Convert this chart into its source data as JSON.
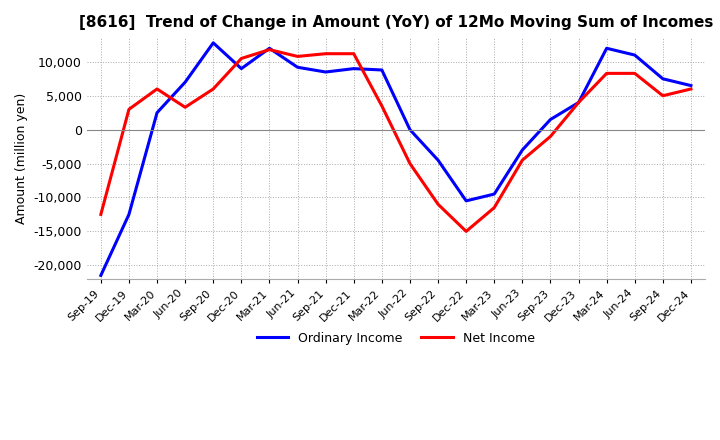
{
  "title": "[8616]  Trend of Change in Amount (YoY) of 12Mo Moving Sum of Incomes",
  "ylabel": "Amount (million yen)",
  "ylim": [
    -22000,
    13500
  ],
  "yticks": [
    10000,
    5000,
    0,
    -5000,
    -10000,
    -15000,
    -20000
  ],
  "background_color": "#ffffff",
  "grid_color": "#aaaaaa",
  "line1_color": "#0000ff",
  "line2_color": "#ff0000",
  "line1_label": "Ordinary Income",
  "line2_label": "Net Income",
  "x_labels": [
    "Sep-19",
    "Dec-19",
    "Mar-20",
    "Jun-20",
    "Sep-20",
    "Dec-20",
    "Mar-21",
    "Jun-21",
    "Sep-21",
    "Dec-21",
    "Mar-22",
    "Jun-22",
    "Sep-22",
    "Dec-22",
    "Mar-23",
    "Jun-23",
    "Sep-23",
    "Dec-23",
    "Mar-24",
    "Jun-24",
    "Sep-24",
    "Dec-24"
  ],
  "ordinary_income": [
    -21500,
    -12500,
    2500,
    7000,
    12800,
    9000,
    12000,
    9200,
    8500,
    9000,
    8800,
    0,
    -4500,
    -10500,
    -9500,
    -3000,
    1500,
    4000,
    12000,
    11000,
    7500,
    6500
  ],
  "net_income": [
    -12500,
    3000,
    6000,
    3300,
    6000,
    10500,
    11800,
    10800,
    11200,
    11200,
    3500,
    -5000,
    -11000,
    -15000,
    -11500,
    -4500,
    -1000,
    4000,
    8300,
    8300,
    5000,
    6000
  ]
}
